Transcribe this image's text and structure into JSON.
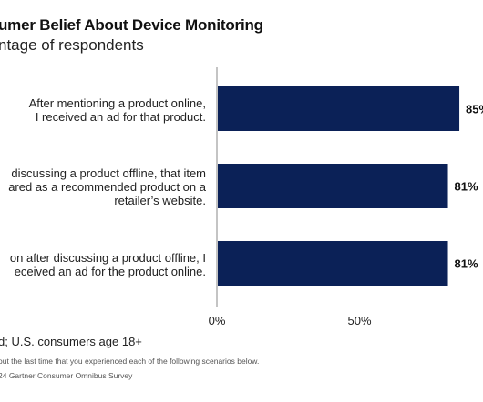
{
  "header": {
    "title": "umer Belief About Device Monitoring",
    "subtitle": "ntage of respondents"
  },
  "chart_data": {
    "type": "bar",
    "orientation": "horizontal",
    "title": "umer Belief About Device Monitoring",
    "subtitle": "ntage of respondents",
    "categories": [
      [
        "After mentioning a product online,",
        "I received an ad for that product."
      ],
      [
        "discussing a product offline, that item",
        "ared as a recommended product on a",
        "retailer’s website."
      ],
      [
        "on after discussing a product offline, I",
        "eceived an ad for the product online."
      ]
    ],
    "values": [
      85,
      81,
      81
    ],
    "value_labels": [
      "85%",
      "81%",
      "81%"
    ],
    "xlim": [
      0,
      100
    ],
    "x_ticks": [
      0,
      50
    ],
    "x_tick_labels": [
      "0%",
      "50%"
    ],
    "xlabel": "",
    "ylabel": "",
    "bar_color": "#0b2157",
    "grid": false
  },
  "notes": {
    "base": "d; U.S. consumers age 18+",
    "question": "out the last time that you experienced each of the following scenarios below.",
    "source": "24 Gartner Consumer Omnibus Survey"
  }
}
